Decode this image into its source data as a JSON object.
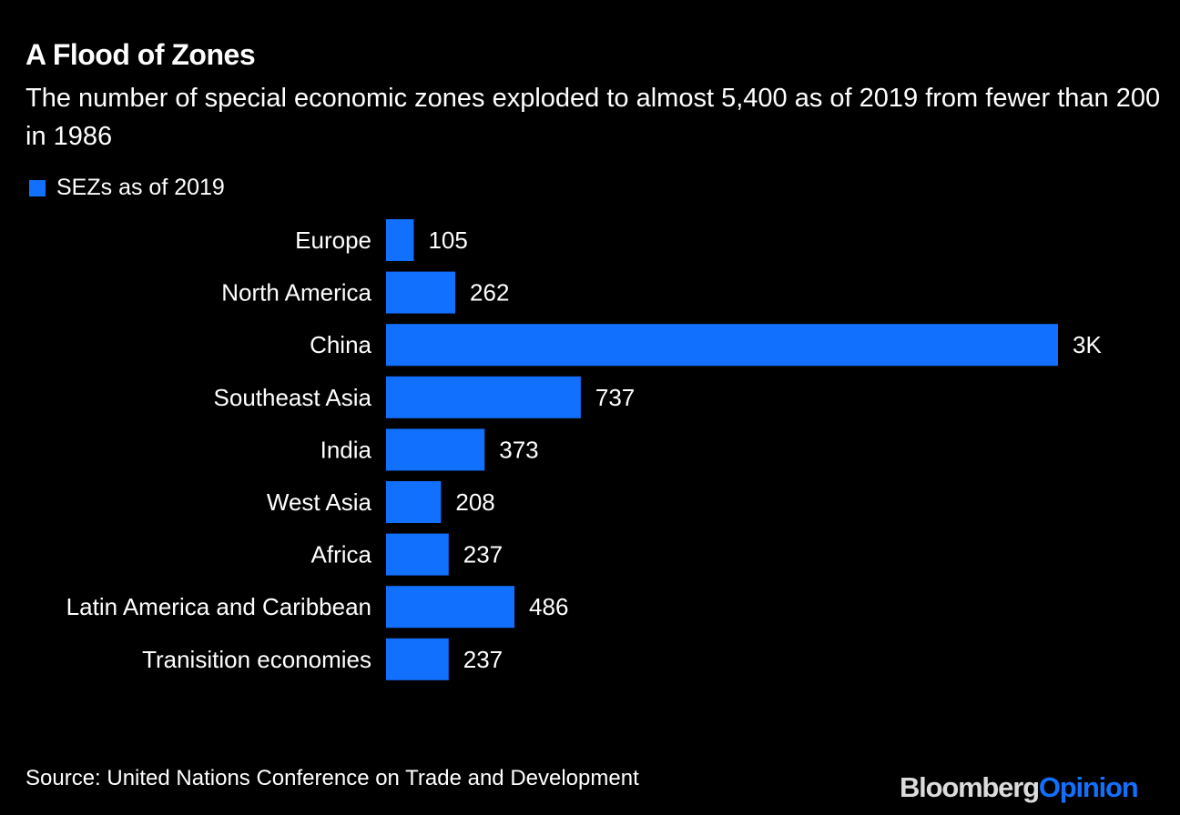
{
  "chart_data": {
    "type": "bar",
    "orientation": "horizontal",
    "title": "A Flood of Zones",
    "subtitle": "The number of special economic zones exploded to almost 5,400 as of 2019 from fewer than 200 in 1986",
    "categories": [
      "Europe",
      "North America",
      "China",
      "Southeast Asia",
      "India",
      "West Asia",
      "Africa",
      "Latin America and Caribbean",
      "Tranisition economies"
    ],
    "series": [
      {
        "name": "SEZs as of 2019",
        "values": [
          105,
          262,
          2543,
          737,
          373,
          208,
          237,
          486,
          237
        ],
        "color": "#1270ff"
      }
    ],
    "data_labels": [
      "105",
      "262",
      "3K",
      "737",
      "373",
      "208",
      "237",
      "486",
      "237"
    ],
    "legend_position": "top-left",
    "grid": false,
    "xlim": [
      0,
      2543
    ]
  },
  "source": "Source: United Nations Conference on Trade and Development",
  "logo": {
    "part1": "Bloomberg",
    "part2": "Opinion",
    "color2": "#1270ff"
  }
}
